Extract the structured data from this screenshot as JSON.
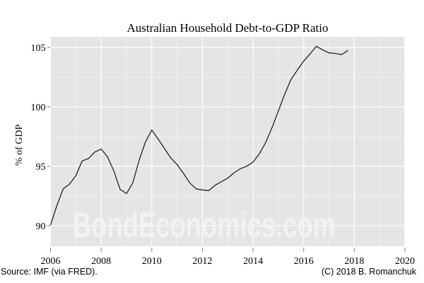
{
  "chart_data": {
    "type": "line",
    "title": "Australian Household Debt-to-GDP Ratio",
    "xlabel": "",
    "ylabel": "% of GDP",
    "xlim": [
      2006,
      2020
    ],
    "ylim": [
      88.27,
      105.9
    ],
    "x_ticks": [
      2006,
      2008,
      2010,
      2012,
      2014,
      2016,
      2018,
      2020
    ],
    "y_ticks": [
      90,
      95,
      100,
      105
    ],
    "grid": true,
    "legend": null,
    "series": [
      {
        "name": "Australian Household Debt-to-GDP Ratio",
        "color": "#000000",
        "x": [
          2006.0,
          2006.25,
          2006.5,
          2006.75,
          2007.0,
          2007.25,
          2007.5,
          2007.75,
          2008.0,
          2008.25,
          2008.5,
          2008.75,
          2009.0,
          2009.25,
          2009.5,
          2009.75,
          2010.0,
          2010.25,
          2010.5,
          2010.75,
          2011.0,
          2011.25,
          2011.5,
          2011.75,
          2012.0,
          2012.25,
          2012.5,
          2012.75,
          2013.0,
          2013.25,
          2013.5,
          2013.75,
          2014.0,
          2014.25,
          2014.5,
          2014.75,
          2015.0,
          2015.25,
          2015.5,
          2015.75,
          2016.0,
          2016.25,
          2016.5,
          2016.75,
          2017.0,
          2017.25,
          2017.5,
          2017.75
        ],
        "values": [
          90.05,
          91.7,
          93.1,
          93.5,
          94.2,
          95.45,
          95.65,
          96.2,
          96.45,
          95.8,
          94.6,
          93.05,
          92.7,
          93.6,
          95.5,
          97.05,
          98.05,
          97.3,
          96.5,
          95.7,
          95.15,
          94.4,
          93.6,
          93.1,
          93.0,
          92.95,
          93.4,
          93.7,
          94.0,
          94.45,
          94.8,
          95.0,
          95.35,
          96.05,
          97.0,
          98.25,
          99.65,
          101.05,
          102.3,
          103.1,
          103.85,
          104.45,
          105.1,
          104.8,
          104.55,
          104.5,
          104.4,
          104.75
        ]
      }
    ],
    "annotations": {
      "watermark": "BondEconomics.com",
      "source": "Source: IMF (via FRED).",
      "copyright": "(C) 2018 B. Romanchuk"
    }
  },
  "colors": {
    "panel_background": "#e5e5e5",
    "grid_major": "#ffffff",
    "grid_minor": "#f2f2f2",
    "line": "#000000",
    "watermark": "#f4f4f4"
  }
}
